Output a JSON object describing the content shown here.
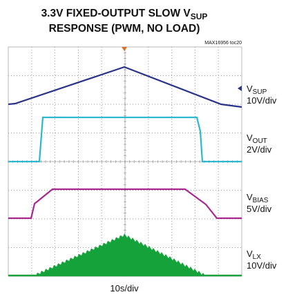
{
  "chart_data": {
    "type": "oscilloscope",
    "title": {
      "text": "3.3V FIXED-OUTPUT SLOW V",
      "sub": "SUP"
    },
    "subtitle": "RESPONSE (PWM, NO LOAD)",
    "note": "MAX16956 toc20",
    "x_label": "10s/div",
    "channels": [
      {
        "symbol": "V",
        "sub": "SUP",
        "scale": "10V/div",
        "color": "#27328a"
      },
      {
        "symbol": "V",
        "sub": "OUT",
        "scale": "2V/div",
        "color": "#29b8d0"
      },
      {
        "symbol": "V",
        "sub": "BIAS",
        "scale": "5V/div",
        "color": "#a8268e"
      },
      {
        "symbol": "V",
        "sub": "LX",
        "scale": "10V/div",
        "color": "#16a23a"
      }
    ]
  }
}
